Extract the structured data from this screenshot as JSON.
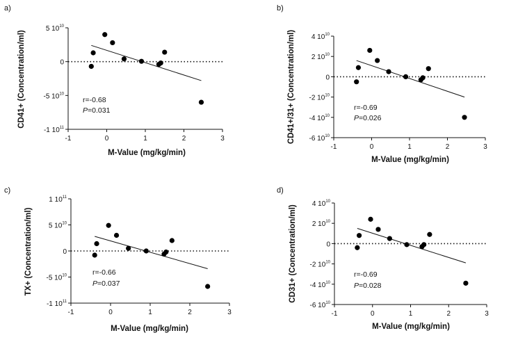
{
  "chart_data": [
    {
      "type": "scatter",
      "panel_label": "a)",
      "xlabel": "M-Value (mg/kg/min)",
      "ylabel": "CD41+ (Concentration/ml)",
      "xlim": [
        -1,
        3
      ],
      "ylim": [
        -100000000000.0,
        50000000000.0
      ],
      "x_ticks": [
        {
          "v": -1,
          "label": "-1"
        },
        {
          "v": 0,
          "label": "0"
        },
        {
          "v": 1,
          "label": "1"
        },
        {
          "v": 2,
          "label": "2"
        },
        {
          "v": 3,
          "label": "3"
        }
      ],
      "y_ticks": [
        {
          "v": 50000000000.0,
          "label": "5",
          "exp": "10"
        },
        {
          "v": 0,
          "label": "0",
          "exp": ""
        },
        {
          "v": -50000000000.0,
          "label": "-5",
          "exp": "10"
        },
        {
          "v": -100000000000.0,
          "label": "-1",
          "exp": "11"
        }
      ],
      "points": [
        {
          "x": -0.4,
          "y": -7000000000.0
        },
        {
          "x": -0.35,
          "y": 13000000000.0
        },
        {
          "x": -0.05,
          "y": 40000000000.0
        },
        {
          "x": 0.15,
          "y": 28000000000.0
        },
        {
          "x": 0.45,
          "y": 4000000000.0
        },
        {
          "x": 0.9,
          "y": 500000000.0
        },
        {
          "x": 1.35,
          "y": -4000000000.0
        },
        {
          "x": 1.4,
          "y": -2000000000.0
        },
        {
          "x": 1.5,
          "y": 14000000000.0
        },
        {
          "x": 2.45,
          "y": -60000000000.0
        }
      ],
      "fit_line": {
        "x": [
          -0.4,
          2.45
        ],
        "y": [
          24000000000.0,
          -28000000000.0
        ]
      },
      "reference_line_y": 0,
      "stat_r": "r=-0.68",
      "stat_p_label": "P",
      "stat_p_value": "=0.031"
    },
    {
      "type": "scatter",
      "panel_label": "b)",
      "xlabel": "M-Value (mg/kg/min)",
      "ylabel": "CD41+/31+ (Concentration/ml)",
      "xlim": [
        -1,
        3
      ],
      "ylim": [
        -60000000000.0,
        40000000000.0
      ],
      "x_ticks": [
        {
          "v": -1,
          "label": "-1"
        },
        {
          "v": 0,
          "label": "0"
        },
        {
          "v": 1,
          "label": "1"
        },
        {
          "v": 2,
          "label": "2"
        },
        {
          "v": 3,
          "label": "3"
        }
      ],
      "y_ticks": [
        {
          "v": 40000000000.0,
          "label": "4",
          "exp": "10"
        },
        {
          "v": 20000000000.0,
          "label": "2",
          "exp": "10"
        },
        {
          "v": 0,
          "label": "0",
          "exp": ""
        },
        {
          "v": -20000000000.0,
          "label": "-2",
          "exp": "10"
        },
        {
          "v": -40000000000.0,
          "label": "-4",
          "exp": "10"
        },
        {
          "v": -60000000000.0,
          "label": "-6",
          "exp": "10"
        }
      ],
      "points": [
        {
          "x": -0.4,
          "y": -5000000000.0
        },
        {
          "x": -0.35,
          "y": 9000000000.0
        },
        {
          "x": -0.05,
          "y": 26000000000.0
        },
        {
          "x": 0.15,
          "y": 16000000000.0
        },
        {
          "x": 0.45,
          "y": 5000000000.0
        },
        {
          "x": 0.9,
          "y": 0.0
        },
        {
          "x": 1.3,
          "y": -3000000000.0
        },
        {
          "x": 1.35,
          "y": -1000000000.0
        },
        {
          "x": 1.5,
          "y": 8000000000.0
        },
        {
          "x": 2.45,
          "y": -40000000000.0
        }
      ],
      "fit_line": {
        "x": [
          -0.4,
          2.45
        ],
        "y": [
          16000000000.0,
          -20000000000.0
        ]
      },
      "reference_line_y": 0,
      "stat_r": "r=-0.69",
      "stat_p_label": "P",
      "stat_p_value": "=0.026"
    },
    {
      "type": "scatter",
      "panel_label": "c)",
      "xlabel": "M-Value (mg/kg/min)",
      "ylabel": "TX+ (Concentration/ml)",
      "xlim": [
        -1,
        3
      ],
      "ylim": [
        -100000000000.0,
        100000000000.0
      ],
      "x_ticks": [
        {
          "v": -1,
          "label": "-1"
        },
        {
          "v": 0,
          "label": "0"
        },
        {
          "v": 1,
          "label": "1"
        },
        {
          "v": 2,
          "label": "2"
        },
        {
          "v": 3,
          "label": "3"
        }
      ],
      "y_ticks": [
        {
          "v": 100000000000.0,
          "label": "1",
          "exp": "11"
        },
        {
          "v": 50000000000.0,
          "label": "5",
          "exp": "10"
        },
        {
          "v": 0,
          "label": "0",
          "exp": ""
        },
        {
          "v": -50000000000.0,
          "label": "-5",
          "exp": "10"
        },
        {
          "v": -100000000000.0,
          "label": "-1",
          "exp": "11"
        }
      ],
      "points": [
        {
          "x": -0.4,
          "y": -8000000000.0
        },
        {
          "x": -0.35,
          "y": 14000000000.0
        },
        {
          "x": -0.05,
          "y": 49000000000.0
        },
        {
          "x": 0.15,
          "y": 30000000000.0
        },
        {
          "x": 0.45,
          "y": 5000000000.0
        },
        {
          "x": 0.9,
          "y": 0.0
        },
        {
          "x": 1.35,
          "y": -6000000000.0
        },
        {
          "x": 1.4,
          "y": -2000000000.0
        },
        {
          "x": 1.55,
          "y": 20000000000.0
        },
        {
          "x": 2.45,
          "y": -68000000000.0
        }
      ],
      "fit_line": {
        "x": [
          -0.4,
          2.45
        ],
        "y": [
          28000000000.0,
          -34000000000.0
        ]
      },
      "reference_line_y": 0,
      "stat_r": "r=-0.66",
      "stat_p_label": "P",
      "stat_p_value": "=0.037"
    },
    {
      "type": "scatter",
      "panel_label": "d)",
      "xlabel": "M-Value (mg/kg/min)",
      "ylabel": "CD31+ (Concentration/ml)",
      "xlim": [
        -1,
        3
      ],
      "ylim": [
        -60000000000.0,
        40000000000.0
      ],
      "x_ticks": [
        {
          "v": -1,
          "label": "-1"
        },
        {
          "v": 0,
          "label": "0"
        },
        {
          "v": 1,
          "label": "1"
        },
        {
          "v": 2,
          "label": "2"
        },
        {
          "v": 3,
          "label": "3"
        }
      ],
      "y_ticks": [
        {
          "v": 40000000000.0,
          "label": "4",
          "exp": "10"
        },
        {
          "v": 20000000000.0,
          "label": "2",
          "exp": "10"
        },
        {
          "v": 0,
          "label": "0",
          "exp": ""
        },
        {
          "v": -20000000000.0,
          "label": "-2",
          "exp": "10"
        },
        {
          "v": -40000000000.0,
          "label": "-4",
          "exp": "10"
        },
        {
          "v": -60000000000.0,
          "label": "-6",
          "exp": "10"
        }
      ],
      "points": [
        {
          "x": -0.4,
          "y": -4000000000.0
        },
        {
          "x": -0.35,
          "y": 8000000000.0
        },
        {
          "x": -0.05,
          "y": 24000000000.0
        },
        {
          "x": 0.15,
          "y": 14000000000.0
        },
        {
          "x": 0.45,
          "y": 5000000000.0
        },
        {
          "x": 0.9,
          "y": -1000000000.0
        },
        {
          "x": 1.3,
          "y": -3000000000.0
        },
        {
          "x": 1.35,
          "y": -1000000000.0
        },
        {
          "x": 1.5,
          "y": 9000000000.0
        },
        {
          "x": 2.45,
          "y": -39000000000.0
        }
      ],
      "fit_line": {
        "x": [
          -0.4,
          2.45
        ],
        "y": [
          15000000000.0,
          -19000000000.0
        ]
      },
      "reference_line_y": 0,
      "stat_r": "r=-0.69",
      "stat_p_label": "P",
      "stat_p_value": "=0.028"
    }
  ]
}
